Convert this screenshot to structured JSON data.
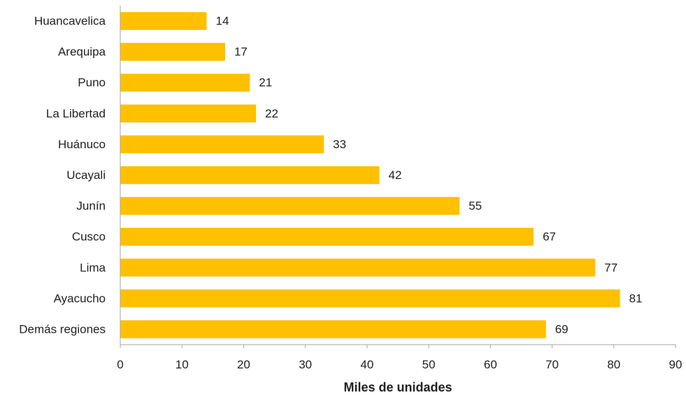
{
  "chart_data": {
    "type": "bar",
    "orientation": "horizontal",
    "categories": [
      "Huancavelica",
      "Arequipa",
      "Puno",
      "La Libertad",
      "Huánuco",
      "Ucayali",
      "Junín",
      "Cusco",
      "Lima",
      "Ayacucho",
      "Demás regiones"
    ],
    "values": [
      14,
      17,
      21,
      22,
      33,
      42,
      55,
      67,
      77,
      81,
      69
    ],
    "xlabel": "Miles de unidades",
    "ylabel": "",
    "xlim": [
      0,
      90
    ],
    "xticks": [
      0,
      10,
      20,
      30,
      40,
      50,
      60,
      70,
      80,
      90
    ],
    "grid": false,
    "data_labels": true,
    "bar_color": "#FFC000",
    "axis_color": "#A6A6A6"
  }
}
